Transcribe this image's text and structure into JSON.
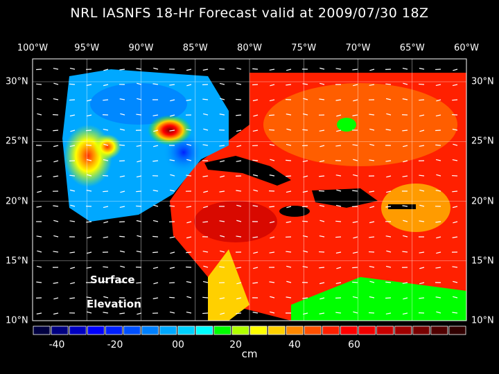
{
  "title": "NRL IASNFS  18-Hr Forecast valid at 2009/07/30 18Z",
  "lon_labels": [
    "100°W",
    "95°W",
    "90°W",
    "85°W",
    "80°W",
    "75°W",
    "70°W",
    "65°W",
    "60°W"
  ],
  "lat_labels": [
    "30°N",
    "25°N",
    "20°N",
    "15°N",
    "10°N"
  ],
  "map_label": {
    "line1": "Surface",
    "line2": "Elevation"
  },
  "colorbar": {
    "unit": "cm",
    "tick_labels": [
      "-40",
      "-20",
      "00",
      "20",
      "40",
      "60"
    ],
    "colors": [
      "#000040",
      "#000080",
      "#0000c0",
      "#0000ff",
      "#0020ff",
      "#0050ff",
      "#0080ff",
      "#00a8ff",
      "#00d0ff",
      "#00ffff",
      "#00ff00",
      "#b0ff00",
      "#ffff00",
      "#ffd000",
      "#ff8800",
      "#ff5000",
      "#ff2000",
      "#ff0000",
      "#f00000",
      "#c80000",
      "#a00000",
      "#780000",
      "#500000",
      "#300000"
    ]
  },
  "map": {
    "lon_range": [
      -100,
      -60
    ],
    "lat_range": [
      10,
      30
    ],
    "variable": "sea surface elevation",
    "land_color": "#000000",
    "vector_color": "#ffffff"
  }
}
